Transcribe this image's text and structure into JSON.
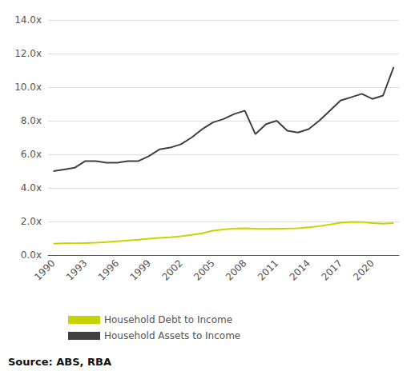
{
  "chart_data": {
    "type": "line",
    "x": [
      1990,
      1991,
      1992,
      1993,
      1994,
      1995,
      1996,
      1997,
      1998,
      1999,
      2000,
      2001,
      2002,
      2003,
      2004,
      2005,
      2006,
      2007,
      2008,
      2009,
      2010,
      2011,
      2012,
      2013,
      2014,
      2015,
      2016,
      2017,
      2018,
      2019,
      2020,
      2021,
      2022
    ],
    "series": [
      {
        "name": "Household Debt to Income",
        "color": "#c8d400",
        "values": [
          0.68,
          0.7,
          0.7,
          0.72,
          0.74,
          0.77,
          0.82,
          0.87,
          0.92,
          0.98,
          1.02,
          1.06,
          1.12,
          1.2,
          1.3,
          1.45,
          1.52,
          1.58,
          1.6,
          1.57,
          1.56,
          1.57,
          1.58,
          1.6,
          1.65,
          1.72,
          1.82,
          1.93,
          1.98,
          1.97,
          1.9,
          1.87,
          1.9
        ]
      },
      {
        "name": "Household Assets to Income",
        "color": "#404040",
        "values": [
          5.0,
          5.1,
          5.2,
          5.6,
          5.6,
          5.5,
          5.5,
          5.6,
          5.6,
          5.9,
          6.3,
          6.4,
          6.6,
          7.0,
          7.5,
          7.9,
          8.1,
          8.4,
          8.6,
          7.2,
          7.8,
          8.0,
          7.4,
          7.3,
          7.5,
          8.0,
          8.6,
          9.2,
          9.4,
          9.6,
          9.3,
          9.5,
          11.2
        ]
      }
    ],
    "xlim": [
      1989.5,
      2022.5
    ],
    "xticks": [
      1990,
      1993,
      1996,
      1999,
      2002,
      2005,
      2008,
      2011,
      2014,
      2017,
      2020
    ],
    "ylim": [
      0,
      14.0
    ],
    "yticks": [
      {
        "value": 0.0,
        "label": "0.0x"
      },
      {
        "value": 2.0,
        "label": "2.0x"
      },
      {
        "value": 4.0,
        "label": "4.0x"
      },
      {
        "value": 6.0,
        "label": "6.0x"
      },
      {
        "value": 8.0,
        "label": "8.0x"
      },
      {
        "value": 10.0,
        "label": "10.0x"
      },
      {
        "value": 12.0,
        "label": "12.0x"
      },
      {
        "value": 14.0,
        "label": "14.0x"
      }
    ],
    "grid": true,
    "legend": "bottom",
    "annotations": [
      "Source: ABS, RBA"
    ]
  }
}
